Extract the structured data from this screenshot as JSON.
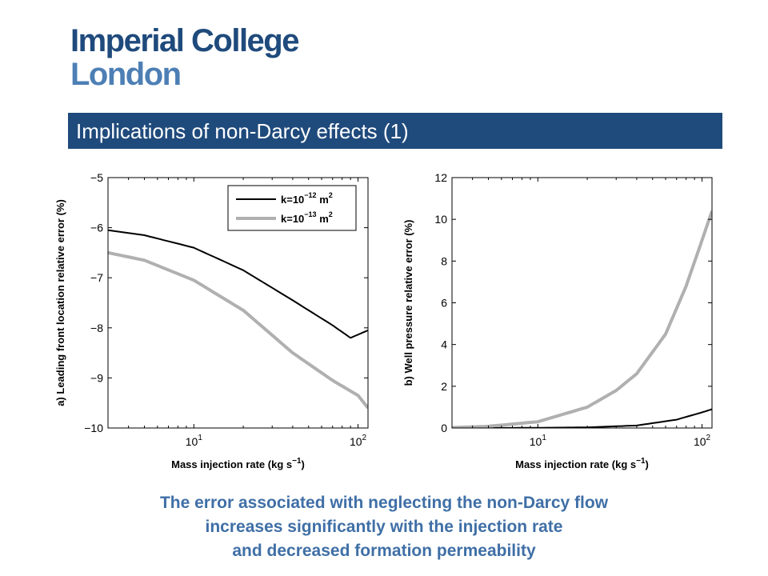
{
  "logo": {
    "line1": "Imperial College",
    "line2": "London"
  },
  "title": "Implications of non-Darcy effects (1)",
  "caption": [
    "The error associated with neglecting the non-Darcy flow",
    "increases significantly with the injection rate",
    "and decreased formation permeability"
  ],
  "colors": {
    "brand_dark": "#1f4a7c",
    "brand_light": "#4d7fb5",
    "caption": "#3f6fa6",
    "series_1": "#000000",
    "series_2": "#b0b0b0"
  },
  "chart_data": [
    {
      "type": "line",
      "ylabel": "a) Leading front location relative error (%)",
      "xlabel": "Mass injection rate (kg s",
      "xlabel_sup": "−1",
      "xlabel_close": ")",
      "xscale": "log",
      "xlim": [
        3,
        115
      ],
      "ylim": [
        -10,
        -5
      ],
      "yticks": [
        {
          "v": -5,
          "label": "−5"
        },
        {
          "v": -6,
          "label": "−6"
        },
        {
          "v": -7,
          "label": "−7"
        },
        {
          "v": -8,
          "label": "−8"
        },
        {
          "v": -9,
          "label": "−9"
        },
        {
          "v": -10,
          "label": "−10"
        }
      ],
      "xticks": [
        {
          "v": 10,
          "base": "10",
          "exp": "1"
        },
        {
          "v": 100,
          "base": "10",
          "exp": "2"
        }
      ],
      "grid": false,
      "legend": {
        "placement": "top-right"
      },
      "series": [
        {
          "name": "k=10",
          "name_exp": "−12",
          "name_unit": " m",
          "name_unit_exp": "2",
          "color": "#000000",
          "x": [
            3,
            5,
            10,
            20,
            40,
            70,
            90,
            115
          ],
          "y": [
            -6.05,
            -6.15,
            -6.4,
            -6.85,
            -7.45,
            -7.95,
            -8.2,
            -8.05
          ]
        },
        {
          "name": "k=10",
          "name_exp": "−13",
          "name_unit": " m",
          "name_unit_exp": "2",
          "color": "#b0b0b0",
          "x": [
            3,
            5,
            10,
            20,
            40,
            70,
            100,
            115
          ],
          "y": [
            -6.5,
            -6.65,
            -7.05,
            -7.65,
            -8.5,
            -9.05,
            -9.35,
            -9.6
          ]
        }
      ]
    },
    {
      "type": "line",
      "ylabel": "b) Well pressure relative error (%)",
      "xlabel": "Mass injection rate (kg s",
      "xlabel_sup": "−1",
      "xlabel_close": ")",
      "xscale": "log",
      "xlim": [
        3,
        115
      ],
      "ylim": [
        0,
        12
      ],
      "yticks": [
        {
          "v": 0,
          "label": "0"
        },
        {
          "v": 2,
          "label": "2"
        },
        {
          "v": 4,
          "label": "4"
        },
        {
          "v": 6,
          "label": "6"
        },
        {
          "v": 8,
          "label": "8"
        },
        {
          "v": 10,
          "label": "10"
        },
        {
          "v": 12,
          "label": "12"
        }
      ],
      "xticks": [
        {
          "v": 10,
          "base": "10",
          "exp": "1"
        },
        {
          "v": 100,
          "base": "10",
          "exp": "2"
        }
      ],
      "grid": false,
      "series": [
        {
          "color": "#000000",
          "x": [
            3,
            5,
            10,
            20,
            40,
            70,
            100,
            115
          ],
          "y": [
            0.0,
            0.0,
            0.01,
            0.03,
            0.12,
            0.4,
            0.75,
            0.9
          ]
        },
        {
          "color": "#b0b0b0",
          "x": [
            3,
            5,
            10,
            20,
            30,
            40,
            60,
            80,
            100,
            115
          ],
          "y": [
            0.02,
            0.08,
            0.3,
            1.0,
            1.8,
            2.6,
            4.5,
            6.8,
            9.0,
            10.4
          ]
        }
      ]
    }
  ]
}
